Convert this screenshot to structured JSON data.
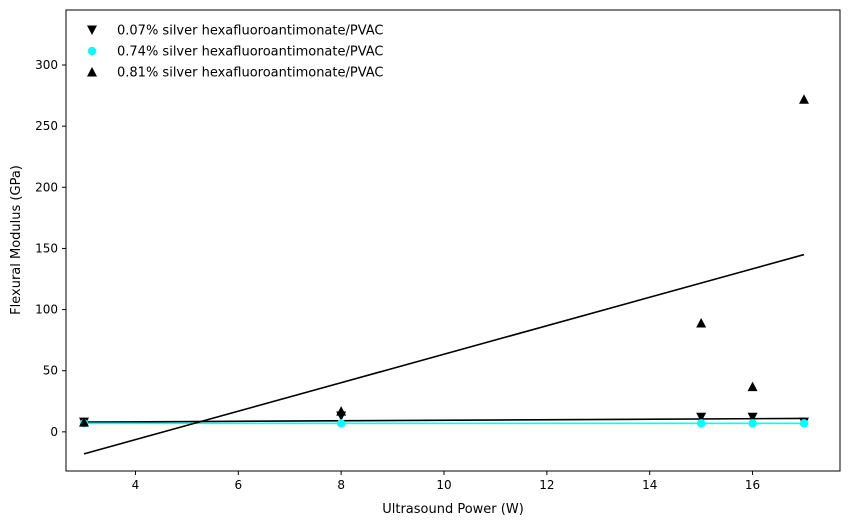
{
  "chart_data": {
    "type": "scatter",
    "title": "",
    "xlabel": "Ultrasound Power (W)",
    "ylabel": "Flexural Modulus (GPa)",
    "xlim": [
      2.65,
      17.7
    ],
    "ylim": [
      -32,
      345
    ],
    "xticks": [
      4,
      6,
      8,
      10,
      12,
      14,
      16
    ],
    "yticks": [
      0,
      50,
      100,
      150,
      200,
      250,
      300
    ],
    "grid": false,
    "legend_position": "top-left",
    "series": [
      {
        "name": "0.07% silver hexafluoroantimonate/PVAC",
        "marker": "triangle-down",
        "color": "#000000",
        "points": [
          [
            3,
            8
          ],
          [
            8,
            13
          ],
          [
            15,
            12
          ],
          [
            16,
            12
          ],
          [
            17,
            8
          ]
        ],
        "fit": [
          [
            3,
            8
          ],
          [
            17,
            11
          ]
        ]
      },
      {
        "name": "0.74% silver hexafluoroantimonate/PVAC",
        "marker": "circle",
        "color": "#00ffff",
        "points": [
          [
            3,
            7
          ],
          [
            8,
            7
          ],
          [
            15,
            7
          ],
          [
            16,
            7
          ],
          [
            17,
            7
          ]
        ],
        "fit": [
          [
            3,
            7
          ],
          [
            17,
            7
          ]
        ]
      },
      {
        "name": "0.81% silver hexafluoroantimonate/PVAC",
        "marker": "triangle-up",
        "color": "#000000",
        "points": [
          [
            3,
            8
          ],
          [
            8,
            17
          ],
          [
            15,
            89
          ],
          [
            16,
            37
          ],
          [
            17,
            272
          ]
        ],
        "fit": [
          [
            3,
            -18
          ],
          [
            17,
            145
          ]
        ]
      }
    ],
    "fit_colors": [
      "#000000",
      "#00ffff",
      "#000000"
    ]
  }
}
